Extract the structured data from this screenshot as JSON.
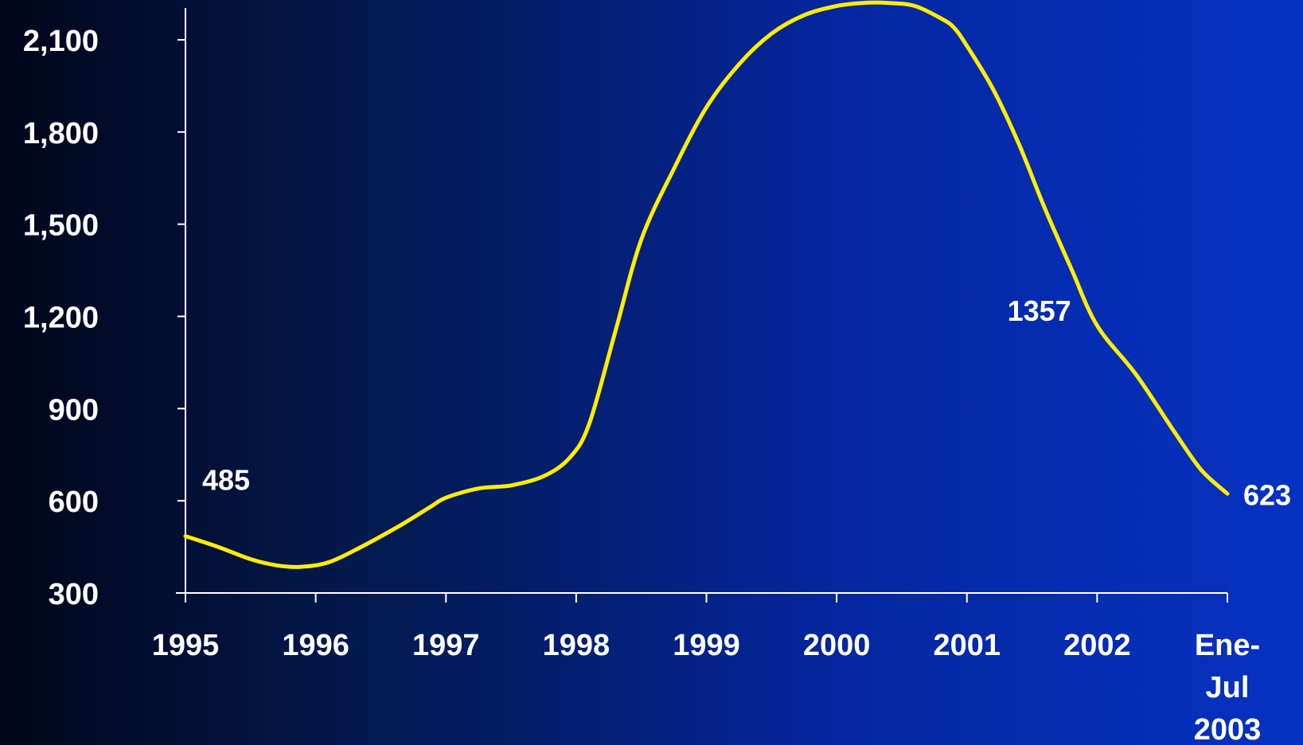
{
  "chart_data": {
    "type": "line",
    "title": "",
    "xlabel": "",
    "ylabel": "",
    "categories": [
      "1995",
      "1996",
      "1997",
      "1998",
      "1999",
      "2000",
      "2001",
      "2002",
      "Ene-Jul 2003"
    ],
    "category_lines": [
      [
        "1995"
      ],
      [
        "1996"
      ],
      [
        "1997"
      ],
      [
        "1998"
      ],
      [
        "1999"
      ],
      [
        "2000"
      ],
      [
        "2001"
      ],
      [
        "2002"
      ],
      [
        "Ene-",
        "Jul",
        "2003"
      ]
    ],
    "yticks": [
      300,
      600,
      900,
      1200,
      1500,
      1800,
      2100
    ],
    "ytick_labels": [
      "300",
      "600",
      "900",
      "1,200",
      "1,500",
      "1,800",
      "2,100"
    ],
    "ylim": [
      300,
      2100
    ],
    "grid": false,
    "line_color": "#ffee00",
    "series": [
      {
        "x": [
          0,
          0.25,
          0.5,
          0.7,
          0.88,
          1.1,
          1.35,
          1.65,
          1.88,
          2.0,
          2.25,
          2.5,
          2.75,
          2.95,
          3.1,
          3.3,
          3.5,
          3.75,
          4.0,
          4.25,
          4.5,
          4.75,
          5.0,
          5.2,
          5.4,
          5.6,
          5.8,
          5.9,
          6.0,
          6.2,
          6.4,
          6.6,
          6.8,
          7.0,
          7.3,
          7.6,
          7.8,
          8.0
        ],
        "y": [
          485,
          450,
          410,
          390,
          385,
          400,
          450,
          520,
          580,
          610,
          640,
          650,
          680,
          740,
          850,
          1150,
          1450,
          1680,
          1880,
          2020,
          2120,
          2180,
          2210,
          2220,
          2220,
          2210,
          2170,
          2140,
          2080,
          1940,
          1760,
          1550,
          1357,
          1170,
          1010,
          820,
          700,
          623
        ]
      }
    ],
    "data_labels": [
      {
        "x": 0,
        "y": 485,
        "text": "485"
      },
      {
        "x": 6.8,
        "y": 1357,
        "text": "1357"
      },
      {
        "x": 8.0,
        "y": 623,
        "text": "623"
      }
    ]
  }
}
